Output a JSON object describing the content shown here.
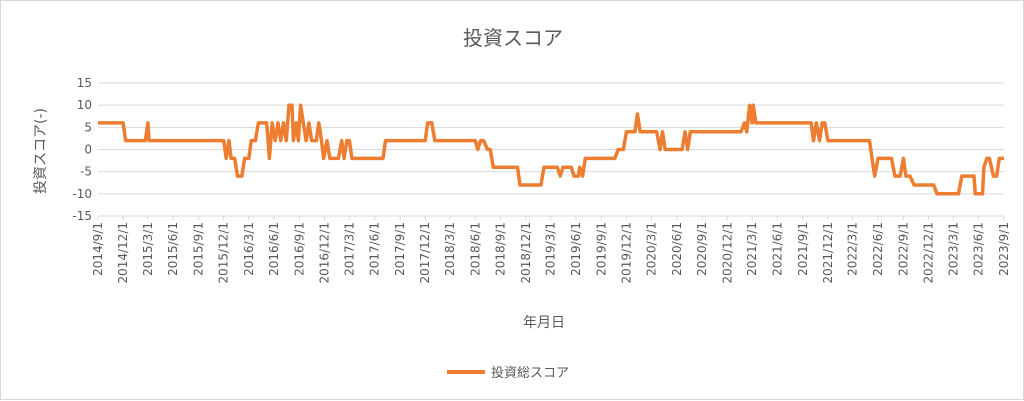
{
  "chart_data": {
    "type": "line",
    "title": "投資スコア",
    "xlabel": "年月日",
    "ylabel": "投資スコア(-)",
    "ylim": [
      -15,
      15
    ],
    "yticks": [
      15,
      10,
      5,
      0,
      -5,
      -10,
      -15
    ],
    "xlim": [
      "2014/9/1",
      "2023/9/1"
    ],
    "x_tick_labels": [
      "2014/9/1",
      "2014/12/1",
      "2015/3/1",
      "2015/6/1",
      "2015/9/1",
      "2015/12/1",
      "2016/3/1",
      "2016/6/1",
      "2016/9/1",
      "2016/12/1",
      "2017/3/1",
      "2017/6/1",
      "2017/9/1",
      "2017/12/1",
      "2018/3/1",
      "2018/6/1",
      "2018/9/1",
      "2018/12/1",
      "2019/3/1",
      "2019/6/1",
      "2019/9/1",
      "2019/12/1",
      "2020/3/1",
      "2020/6/1",
      "2020/9/1",
      "2020/12/1",
      "2021/3/1",
      "2021/6/1",
      "2021/9/1",
      "2021/12/1",
      "2022/3/1",
      "2022/6/1",
      "2022/9/1",
      "2022/12/1",
      "2023/3/1",
      "2023/6/1",
      "2023/9/1"
    ],
    "grid": "horizontal",
    "legend_position": "bottom",
    "series": [
      {
        "name": "投資総スコア",
        "color": "#ED7D31",
        "points": [
          [
            "2014/9/1",
            6
          ],
          [
            "2014/12/1",
            6
          ],
          [
            "2014/12/10",
            2
          ],
          [
            "2015/2/20",
            2
          ],
          [
            "2015/3/1",
            6
          ],
          [
            "2015/3/5",
            2
          ],
          [
            "2015/12/1",
            2
          ],
          [
            "2015/12/10",
            -2
          ],
          [
            "2015/12/20",
            2
          ],
          [
            "2015/12/28",
            -2
          ],
          [
            "2016/1/10",
            -2
          ],
          [
            "2016/1/20",
            -6
          ],
          [
            "2016/2/5",
            -6
          ],
          [
            "2016/2/15",
            -2
          ],
          [
            "2016/3/1",
            -2
          ],
          [
            "2016/3/10",
            2
          ],
          [
            "2016/3/25",
            2
          ],
          [
            "2016/4/5",
            6
          ],
          [
            "2016/5/5",
            6
          ],
          [
            "2016/5/15",
            -2
          ],
          [
            "2016/5/25",
            6
          ],
          [
            "2016/6/5",
            2
          ],
          [
            "2016/6/15",
            6
          ],
          [
            "2016/6/25",
            2
          ],
          [
            "2016/7/5",
            6
          ],
          [
            "2016/7/15",
            2
          ],
          [
            "2016/7/25",
            10
          ],
          [
            "2016/8/5",
            10
          ],
          [
            "2016/8/10",
            2
          ],
          [
            "2016/8/20",
            6
          ],
          [
            "2016/8/28",
            2
          ],
          [
            "2016/9/5",
            10
          ],
          [
            "2016/9/15",
            6
          ],
          [
            "2016/9/25",
            2
          ],
          [
            "2016/10/5",
            6
          ],
          [
            "2016/10/15",
            2
          ],
          [
            "2016/11/1",
            2
          ],
          [
            "2016/11/10",
            6
          ],
          [
            "2016/11/20",
            2
          ],
          [
            "2016/11/28",
            -2
          ],
          [
            "2016/12/10",
            2
          ],
          [
            "2016/12/20",
            -2
          ],
          [
            "2017/1/20",
            -2
          ],
          [
            "2017/2/1",
            2
          ],
          [
            "2017/2/10",
            -2
          ],
          [
            "2017/2/20",
            2
          ],
          [
            "2017/3/1",
            2
          ],
          [
            "2017/3/10",
            -2
          ],
          [
            "2017/7/1",
            -2
          ],
          [
            "2017/7/10",
            2
          ],
          [
            "2017/12/1",
            2
          ],
          [
            "2017/12/10",
            6
          ],
          [
            "2017/12/25",
            6
          ],
          [
            "2018/1/5",
            2
          ],
          [
            "2018/6/1",
            2
          ],
          [
            "2018/6/10",
            0
          ],
          [
            "2018/6/20",
            2
          ],
          [
            "2018/7/1",
            2
          ],
          [
            "2018/7/15",
            0
          ],
          [
            "2018/7/25",
            0
          ],
          [
            "2018/8/5",
            -4
          ],
          [
            "2018/11/1",
            -4
          ],
          [
            "2018/11/10",
            -8
          ],
          [
            "2019/1/25",
            -8
          ],
          [
            "2019/2/5",
            -4
          ],
          [
            "2019/3/25",
            -4
          ],
          [
            "2019/4/5",
            -6
          ],
          [
            "2019/4/15",
            -4
          ],
          [
            "2019/5/15",
            -4
          ],
          [
            "2019/5/25",
            -6
          ],
          [
            "2019/6/10",
            -6
          ],
          [
            "2019/6/15",
            -4
          ],
          [
            "2019/6/25",
            -6
          ],
          [
            "2019/7/5",
            -2
          ],
          [
            "2019/10/20",
            -2
          ],
          [
            "2019/11/1",
            0
          ],
          [
            "2019/11/20",
            0
          ],
          [
            "2019/12/1",
            4
          ],
          [
            "2020/1/1",
            4
          ],
          [
            "2020/1/10",
            8
          ],
          [
            "2020/1/20",
            4
          ],
          [
            "2020/3/20",
            4
          ],
          [
            "2020/4/1",
            0
          ],
          [
            "2020/4/10",
            4
          ],
          [
            "2020/4/20",
            0
          ],
          [
            "2020/6/20",
            0
          ],
          [
            "2020/7/1",
            4
          ],
          [
            "2020/7/10",
            0
          ],
          [
            "2020/7/20",
            4
          ],
          [
            "2021/1/20",
            4
          ],
          [
            "2021/2/1",
            6
          ],
          [
            "2021/2/10",
            4
          ],
          [
            "2021/2/20",
            10
          ],
          [
            "2021/3/1",
            6
          ],
          [
            "2021/3/5",
            10
          ],
          [
            "2021/3/15",
            6
          ],
          [
            "2021/10/1",
            6
          ],
          [
            "2021/10/10",
            2
          ],
          [
            "2021/10/20",
            6
          ],
          [
            "2021/11/1",
            2
          ],
          [
            "2021/11/10",
            6
          ],
          [
            "2021/11/20",
            6
          ],
          [
            "2021/12/1",
            2
          ],
          [
            "2022/5/1",
            2
          ],
          [
            "2022/5/10",
            -2
          ],
          [
            "2022/5/20",
            -6
          ],
          [
            "2022/6/1",
            -2
          ],
          [
            "2022/7/20",
            -2
          ],
          [
            "2022/8/1",
            -6
          ],
          [
            "2022/8/20",
            -6
          ],
          [
            "2022/9/1",
            -2
          ],
          [
            "2022/9/10",
            -6
          ],
          [
            "2022/9/25",
            -6
          ],
          [
            "2022/10/10",
            -8
          ],
          [
            "2022/12/20",
            -8
          ],
          [
            "2023/1/1",
            -10
          ],
          [
            "2023/3/20",
            -10
          ],
          [
            "2023/4/1",
            -6
          ],
          [
            "2023/5/15",
            -6
          ],
          [
            "2023/5/20",
            -10
          ],
          [
            "2023/6/15",
            -10
          ],
          [
            "2023/6/20",
            -4
          ],
          [
            "2023/7/1",
            -2
          ],
          [
            "2023/7/10",
            -2
          ],
          [
            "2023/7/25",
            -6
          ],
          [
            "2023/8/5",
            -6
          ],
          [
            "2023/8/15",
            -2
          ],
          [
            "2023/11/30",
            -2
          ]
        ]
      }
    ]
  }
}
